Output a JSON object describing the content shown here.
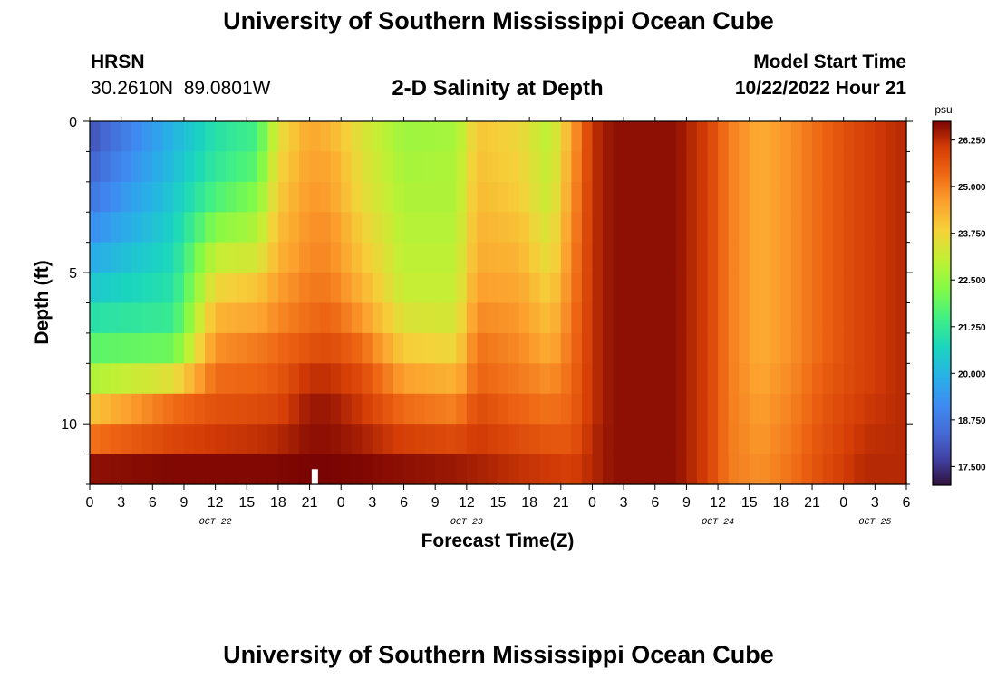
{
  "page": {
    "title_top": "University of Southern Mississippi Ocean Cube",
    "title_bottom": "University of Southern Mississippi Ocean Cube",
    "station_name": "HRSN",
    "station_coords": "30.2610N  89.0801W",
    "plot_title": "2-D Salinity at Depth",
    "model_start_label": "Model Start Time",
    "model_start_value": "10/22/2022 Hour 21"
  },
  "chart_data": {
    "type": "heatmap",
    "title": "2-D Salinity at Depth",
    "xlabel": "Forecast Time(Z)",
    "ylabel": "Depth (ft)",
    "x_tick_labels": [
      "0",
      "3",
      "6",
      "9",
      "12",
      "15",
      "18",
      "21",
      "0",
      "3",
      "6",
      "9",
      "12",
      "15",
      "18",
      "21",
      "0",
      "3",
      "6",
      "9",
      "12",
      "15",
      "18",
      "21",
      "0",
      "3",
      "6"
    ],
    "day_labels": [
      {
        "text": "OCT 22",
        "hour": 12
      },
      {
        "text": "OCT 23",
        "hour": 36
      },
      {
        "text": "OCT 24",
        "hour": 60
      },
      {
        "text": "OCT 25",
        "hour": 75
      }
    ],
    "x_range_hours": [
      0,
      78
    ],
    "y_range_ft": [
      0,
      12
    ],
    "y_tick_labels": [
      "0",
      "5",
      "10"
    ],
    "y_major_ticks": [
      0,
      5,
      10
    ],
    "y_minor_step": 1,
    "colorbar": {
      "unit": "psu",
      "range": [
        17.0,
        26.75
      ],
      "tick_values": [
        17.5,
        18.75,
        20.0,
        21.25,
        22.5,
        23.75,
        25.0,
        26.25
      ],
      "tick_labels": [
        "17.500",
        "18.750",
        "20.000",
        "21.250",
        "22.500",
        "23.750",
        "25.000",
        "26.250"
      ]
    },
    "heatmap": {
      "x_hours_per_column": 1,
      "depth_layers_ft": [
        0.5,
        1.5,
        2.5,
        3.5,
        4.5,
        5.5,
        6.5,
        7.5,
        8.5,
        9.5,
        10.5,
        11.5
      ],
      "time_keys": [
        [
          0,
          18.0,
          18.3,
          18.7,
          19.2,
          19.8,
          20.4,
          21.0,
          21.8,
          22.8,
          24.0,
          25.2,
          26.6
        ],
        [
          8,
          20.0,
          20.2,
          20.4,
          20.6,
          20.8,
          21.0,
          21.3,
          22.0,
          23.5,
          25.3,
          25.9,
          26.7
        ],
        [
          12,
          21.0,
          21.2,
          21.6,
          22.3,
          23.1,
          23.7,
          24.3,
          24.8,
          25.3,
          25.7,
          26.1,
          26.7
        ],
        [
          16,
          21.5,
          21.8,
          22.3,
          22.8,
          23.3,
          24.0,
          24.5,
          25.1,
          25.4,
          25.8,
          26.2,
          26.7
        ],
        [
          18,
          23.5,
          23.7,
          23.9,
          24.1,
          24.3,
          24.6,
          24.9,
          25.3,
          25.6,
          25.9,
          26.3,
          26.7
        ],
        [
          21,
          24.5,
          24.6,
          24.7,
          24.8,
          24.9,
          25.1,
          25.3,
          25.7,
          26.2,
          26.5,
          26.6,
          26.75
        ],
        [
          23,
          24.3,
          24.5,
          24.6,
          24.8,
          24.9,
          25.1,
          25.4,
          25.8,
          26.2,
          26.5,
          26.6,
          26.75
        ],
        [
          26,
          23.4,
          23.5,
          23.6,
          23.8,
          24.0,
          24.3,
          24.7,
          25.3,
          25.8,
          26.1,
          26.4,
          26.7
        ],
        [
          30,
          22.6,
          22.7,
          22.8,
          22.9,
          23.0,
          23.1,
          23.4,
          23.9,
          24.6,
          25.3,
          26.0,
          26.6
        ],
        [
          35,
          22.7,
          22.8,
          22.8,
          22.9,
          23.0,
          23.1,
          23.3,
          23.7,
          24.3,
          25.0,
          25.8,
          26.5
        ],
        [
          37,
          24.0,
          24.1,
          24.2,
          24.3,
          24.4,
          24.6,
          24.9,
          25.2,
          25.4,
          25.8,
          26.1,
          26.4
        ],
        [
          41,
          23.7,
          23.8,
          23.9,
          24.1,
          24.3,
          24.5,
          24.7,
          24.9,
          25.1,
          25.4,
          25.8,
          26.2
        ],
        [
          44,
          22.9,
          23.0,
          23.1,
          23.3,
          23.5,
          23.8,
          24.1,
          24.4,
          24.8,
          25.2,
          25.6,
          26.1
        ],
        [
          46,
          24.5,
          24.6,
          24.7,
          24.8,
          24.9,
          25.0,
          25.1,
          25.2,
          25.3,
          25.4,
          25.6,
          26.0
        ],
        [
          48,
          26.2,
          26.2,
          26.2,
          26.2,
          26.2,
          26.2,
          26.2,
          26.2,
          26.2,
          26.2,
          26.3,
          26.3
        ],
        [
          50,
          26.6,
          26.6,
          26.6,
          26.6,
          26.6,
          26.6,
          26.6,
          26.6,
          26.6,
          26.6,
          26.6,
          26.6
        ],
        [
          56,
          26.6,
          26.6,
          26.6,
          26.6,
          26.6,
          26.6,
          26.6,
          26.6,
          26.6,
          26.6,
          26.6,
          26.6
        ],
        [
          59,
          26.0,
          26.0,
          26.0,
          26.0,
          26.0,
          26.0,
          26.0,
          26.0,
          26.0,
          26.0,
          26.0,
          26.0
        ],
        [
          61,
          25.1,
          25.1,
          25.1,
          25.1,
          25.1,
          25.1,
          25.1,
          25.1,
          25.1,
          25.1,
          25.1,
          25.1
        ],
        [
          64,
          24.4,
          24.4,
          24.4,
          24.4,
          24.4,
          24.4,
          24.4,
          24.4,
          24.5,
          24.6,
          24.7,
          24.8
        ],
        [
          67,
          24.8,
          24.8,
          24.8,
          24.8,
          24.8,
          24.8,
          24.8,
          24.8,
          24.9,
          25.0,
          25.1,
          25.2
        ],
        [
          70,
          25.4,
          25.4,
          25.4,
          25.4,
          25.4,
          25.4,
          25.4,
          25.4,
          25.5,
          25.6,
          25.7,
          25.8
        ],
        [
          74,
          26.0,
          26.0,
          26.0,
          26.0,
          26.0,
          26.0,
          26.0,
          26.0,
          26.0,
          26.1,
          26.2,
          26.3
        ],
        [
          78,
          26.3,
          26.3,
          26.3,
          26.3,
          26.3,
          26.3,
          26.3,
          26.3,
          26.3,
          26.3,
          26.3,
          26.3
        ]
      ]
    },
    "marker": {
      "hour": 21.5,
      "depth_from": 11.5,
      "depth_to": 12,
      "color": "#ffffff"
    }
  }
}
